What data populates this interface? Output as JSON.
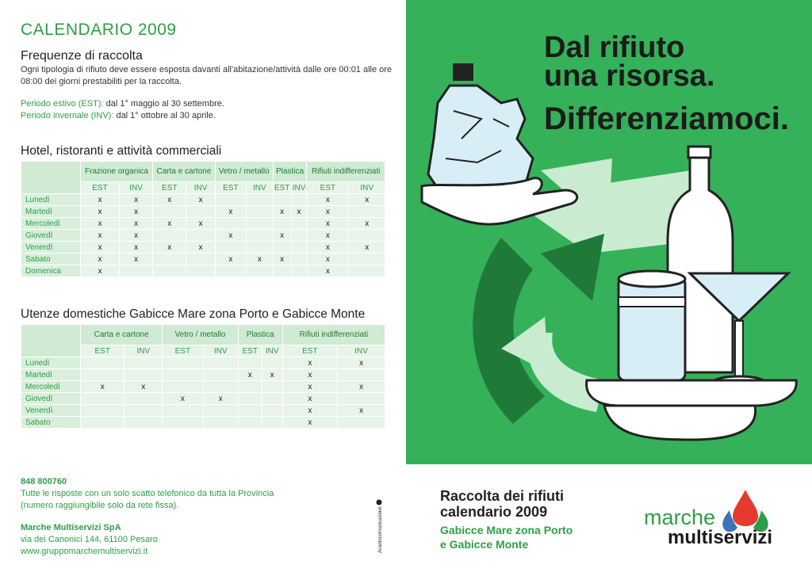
{
  "calendar_title": "CALENDARIO 2009",
  "frequency": {
    "title": "Frequenze di raccolta",
    "text": "Ogni tipologia di rifiuto deve essere esposta davanti all'abitazione/attività dalle ore 00:01 alle ore 08:00 dei giorni prestabiliti per la raccolta.",
    "summer_label": "Periodo estivo (EST):",
    "summer_text": " dal 1° maggio al 30 settembre.",
    "winter_label": "Periodo invernale (INV):",
    "winter_text": " dal 1° ottobre al 30 aprile."
  },
  "table1": {
    "title": "Hotel, ristoranti e attività commerciali",
    "groups": [
      "Frazione organica",
      "Carta e cartone",
      "Vetro / metallo",
      "Plastica",
      "Rifiuti indifferenziati"
    ],
    "sub": [
      "EST",
      "INV"
    ],
    "rows": [
      {
        "day": "Lunedì",
        "cells": [
          "x",
          "x",
          "x",
          "x",
          "",
          "",
          "",
          "",
          "x",
          "x"
        ]
      },
      {
        "day": "Martedì",
        "cells": [
          "x",
          "x",
          "",
          "",
          "x",
          "",
          "x",
          "x",
          "x",
          ""
        ]
      },
      {
        "day": "Mercoledì",
        "cells": [
          "x",
          "x",
          "x",
          "x",
          "",
          "",
          "",
          "",
          "x",
          "x"
        ]
      },
      {
        "day": "Giovedì",
        "cells": [
          "x",
          "x",
          "",
          "",
          "x",
          "",
          "x",
          "",
          "x",
          ""
        ]
      },
      {
        "day": "Venerdì",
        "cells": [
          "x",
          "x",
          "x",
          "x",
          "",
          "",
          "",
          "",
          "x",
          "x"
        ]
      },
      {
        "day": "Sabato",
        "cells": [
          "x",
          "x",
          "",
          "",
          "x",
          "x",
          "x",
          "",
          "x",
          ""
        ]
      },
      {
        "day": "Domenica",
        "cells": [
          "x",
          "",
          "",
          "",
          "",
          "",
          "",
          "",
          "x",
          ""
        ]
      }
    ]
  },
  "table2": {
    "title": "Utenze domestiche Gabicce Mare zona Porto e Gabicce Monte",
    "groups": [
      "Carta e cartone",
      "Vetro / metallo",
      "Plastica",
      "Rifiuti indifferenziati"
    ],
    "sub": [
      "EST",
      "INV"
    ],
    "rows": [
      {
        "day": "Lunedì",
        "cells": [
          "",
          "",
          "",
          "",
          "",
          "",
          "x",
          "x"
        ]
      },
      {
        "day": "Martedì",
        "cells": [
          "",
          "",
          "",
          "",
          "x",
          "x",
          "x",
          ""
        ]
      },
      {
        "day": "Mercoledì",
        "cells": [
          "x",
          "x",
          "",
          "",
          "",
          "",
          "x",
          "x"
        ]
      },
      {
        "day": "Giovedì",
        "cells": [
          "",
          "",
          "x",
          "x",
          "",
          "",
          "x",
          ""
        ]
      },
      {
        "day": "Venerdì",
        "cells": [
          "",
          "",
          "",
          "",
          "",
          "",
          "x",
          "x"
        ]
      },
      {
        "day": "Sabato",
        "cells": [
          "",
          "",
          "",
          "",
          "",
          "",
          "x",
          ""
        ]
      }
    ]
  },
  "contact": {
    "phone": "848 800760",
    "phone_note1": "Tutte le risposte con un solo scatto telefonico da tutta la Provincia",
    "phone_note2": "(numero raggiungibile solo da rete fissa).",
    "company": "Marche Multiservizi SpA",
    "address": "via dei Canonici 144, 61100 Pesaro",
    "website": "www.gruppomarchemultiservizi.it"
  },
  "vertical_credit": "Acantocomunicazione",
  "slogan": {
    "line1": "Dal rifiuto",
    "line2": "una risorsa.",
    "line3": "Differenziamoci."
  },
  "cover": {
    "title1": "Raccolta dei rifiuti",
    "title2": "calendario 2009",
    "sub1": "Gabicce Mare zona Porto",
    "sub2": "e Gabicce Monte"
  },
  "logo": {
    "word1": "marche",
    "word2": "multiservizi"
  },
  "colors": {
    "brand_green": "#35b15a",
    "text_green": "#2e9e46",
    "logo_red": "#e63a2e",
    "logo_blue": "#3a73b8"
  }
}
